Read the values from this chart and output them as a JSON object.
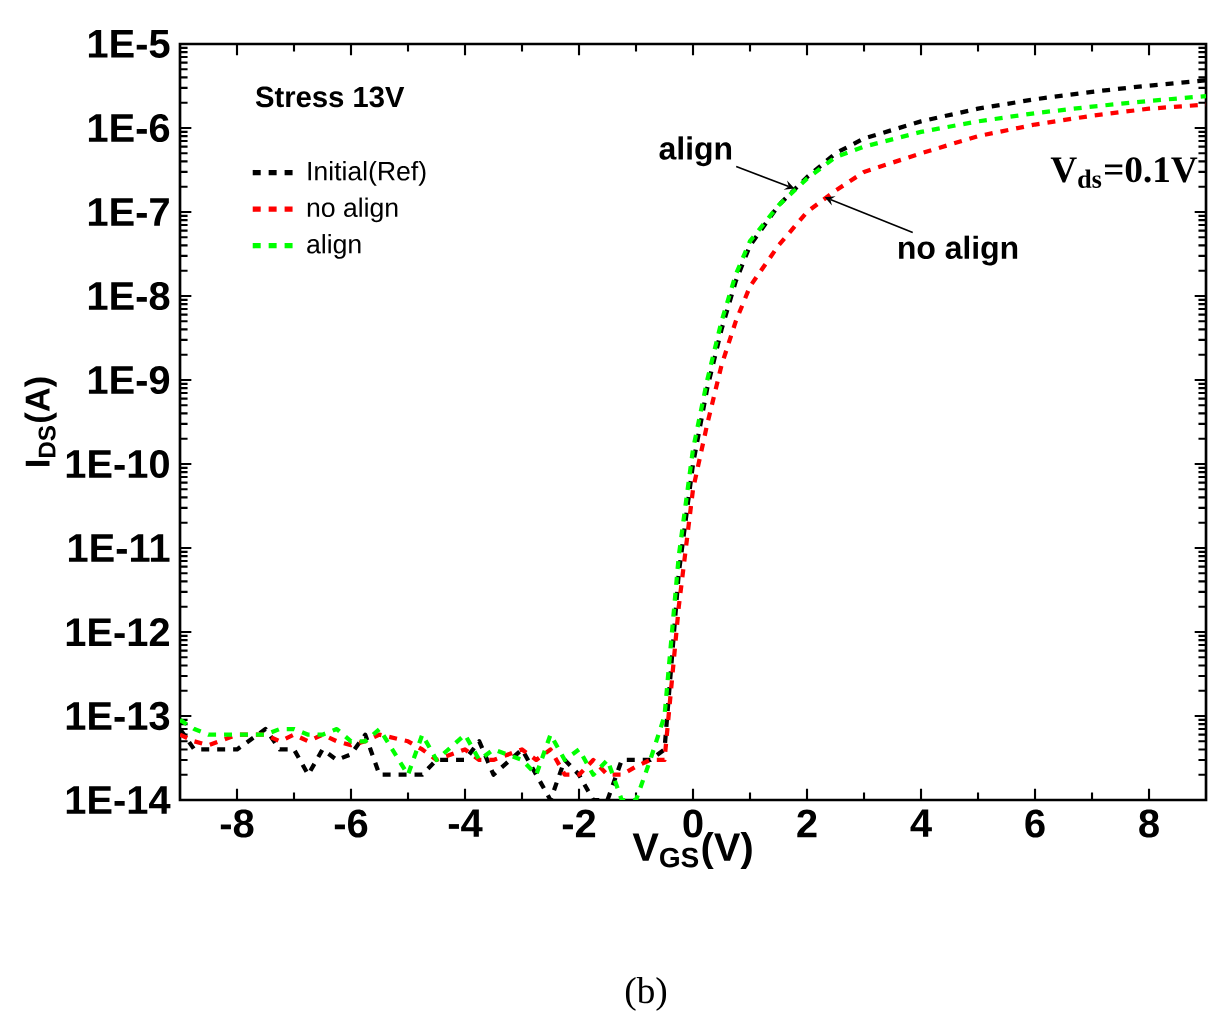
{
  "chart_data": {
    "type": "line",
    "xlabel": "V$_{GS}$(V)",
    "ylabel": "I$_{DS}$(A)",
    "log": "y",
    "legend": "top left",
    "line_style": "dashed",
    "xlim": [
      -9,
      9
    ],
    "xticks": [
      -8,
      -6,
      -4,
      -2,
      0,
      2,
      4,
      6,
      8
    ],
    "ylim": [
      1e-14,
      1e-05
    ],
    "yticks": [
      {
        "value": 1e-14,
        "label": "1E-14"
      },
      {
        "value": 1e-13,
        "label": "1E-13"
      },
      {
        "value": 1e-12,
        "label": "1E-12"
      },
      {
        "value": 1e-11,
        "label": "1E-11"
      },
      {
        "value": 1e-10,
        "label": "1E-10"
      },
      {
        "value": 1e-09,
        "label": "1E-9"
      },
      {
        "value": 1e-08,
        "label": "1E-8"
      },
      {
        "value": 1e-07,
        "label": "1E-7"
      },
      {
        "value": 1e-06,
        "label": "1E-6"
      },
      {
        "value": 1e-05,
        "label": "1E-5"
      }
    ],
    "x": [
      -9,
      -8.75,
      -8.5,
      -8,
      -7.5,
      -7.25,
      -7,
      -6.75,
      -6.5,
      -6.25,
      -6,
      -5.75,
      -5.5,
      -5,
      -4.75,
      -4.5,
      -4,
      -3.75,
      -3.5,
      -3,
      -2.75,
      -2.5,
      -2.25,
      -2,
      -1.75,
      -1.5,
      -1.25,
      -1,
      -0.75,
      -0.5,
      -0.25,
      0,
      0.25,
      0.5,
      0.75,
      1,
      1.5,
      2,
      2.5,
      3,
      4,
      5,
      6,
      7,
      8,
      9
    ],
    "series": [
      {
        "name": "Initial(Ref)",
        "color": "#000000",
        "values": [
          7e-14,
          4e-14,
          4e-14,
          4e-14,
          7e-14,
          4e-14,
          4e-14,
          2e-14,
          4e-14,
          3e-14,
          3.5e-14,
          6e-14,
          2e-14,
          2e-14,
          2e-14,
          3e-14,
          3e-14,
          5e-14,
          2e-14,
          4e-14,
          2e-14,
          1e-14,
          3e-14,
          2e-14,
          1e-14,
          1e-14,
          3e-14,
          3e-14,
          3e-14,
          4e-14,
          5e-12,
          1e-10,
          8e-10,
          4e-09,
          1.5e-08,
          4e-08,
          1.2e-07,
          2.6e-07,
          5e-07,
          7.5e-07,
          1.2e-06,
          1.7e-06,
          2.2e-06,
          2.7e-06,
          3.2e-06,
          3.7e-06
        ]
      },
      {
        "name": "no align",
        "color": "#ff0000",
        "values": [
          6e-14,
          5e-14,
          4.5e-14,
          6e-14,
          6e-14,
          5e-14,
          6e-14,
          5e-14,
          6e-14,
          5e-14,
          4.5e-14,
          5e-14,
          6e-14,
          5e-14,
          4e-14,
          3e-14,
          4e-14,
          3e-14,
          3e-14,
          4e-14,
          3e-14,
          4e-14,
          2e-14,
          2e-14,
          3e-14,
          2e-14,
          2e-14,
          2.5e-14,
          3e-14,
          3e-14,
          2e-12,
          5e-11,
          3e-10,
          1.5e-09,
          5e-09,
          1.3e-08,
          4e-08,
          1e-07,
          1.8e-07,
          3e-07,
          5e-07,
          8e-07,
          1.1e-06,
          1.4e-06,
          1.7e-06,
          1.9e-06
        ]
      },
      {
        "name": "align",
        "color": "#00ff00",
        "values": [
          9e-14,
          7e-14,
          6e-14,
          6e-14,
          6e-14,
          7e-14,
          7e-14,
          6e-14,
          6e-14,
          7e-14,
          5e-14,
          5e-14,
          7e-14,
          2e-14,
          6e-14,
          3e-14,
          6e-14,
          3e-14,
          4e-14,
          3e-14,
          2e-14,
          6e-14,
          3e-14,
          4e-14,
          2e-14,
          3e-14,
          1e-14,
          1e-14,
          3e-14,
          1e-13,
          8e-12,
          1.5e-10,
          1e-09,
          5e-09,
          1.8e-08,
          4.5e-08,
          1.2e-07,
          2.5e-07,
          4.5e-07,
          6e-07,
          9e-07,
          1.2e-06,
          1.5e-06,
          1.8e-06,
          2.1e-06,
          2.4e-06
        ]
      }
    ],
    "annotations": [
      "Stress 13V",
      "V$_{ds}$=0.1V",
      "(b)",
      {
        "text": "align",
        "x": 1.78,
        "y": 1.9e-07
      },
      {
        "text": "no align",
        "x": 2.31,
        "y": 1.5e-07
      }
    ]
  }
}
